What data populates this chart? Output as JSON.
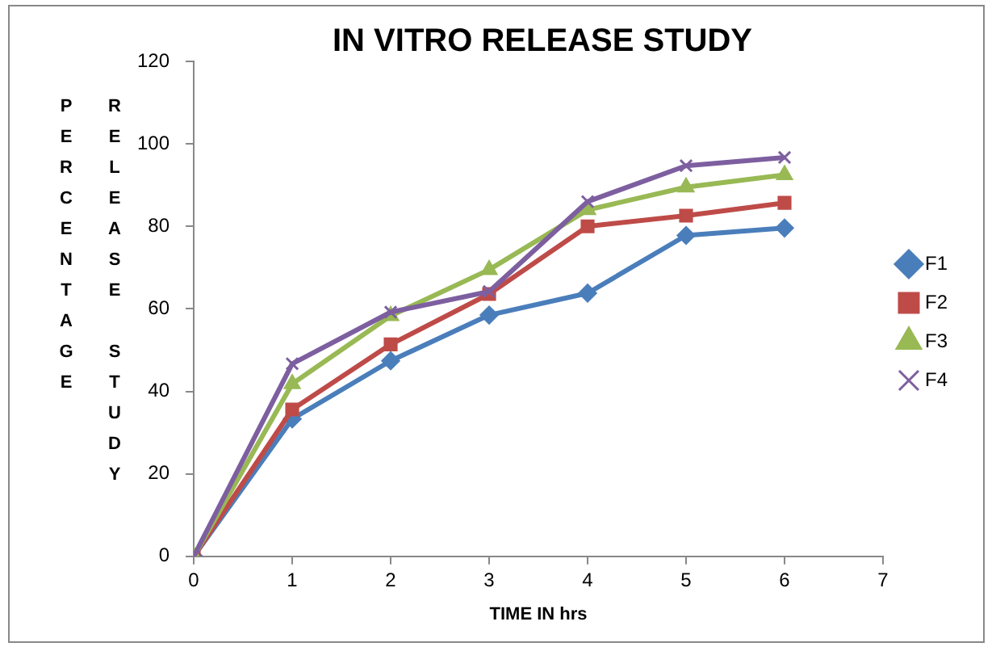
{
  "chart_data": {
    "type": "line",
    "title": "IN VITRO RELEASE STUDY",
    "xlabel": "TIME IN hrs",
    "ylabel": "PERCENTAGE RELEASE STUDY",
    "x": [
      0,
      1,
      2,
      3,
      4,
      5,
      6
    ],
    "xlim": [
      0,
      7
    ],
    "xticks": [
      0,
      1,
      2,
      3,
      4,
      5,
      6,
      7
    ],
    "ylim": [
      0,
      120
    ],
    "yticks": [
      0,
      20,
      40,
      60,
      80,
      100,
      120
    ],
    "grid": false,
    "legend": "right",
    "series": [
      {
        "name": "F1",
        "color": "#4a7ebb",
        "marker": "diamond",
        "values": [
          0,
          33.3,
          47.4,
          58.5,
          63.8,
          77.8,
          79.6
        ]
      },
      {
        "name": "F2",
        "color": "#be4b48",
        "marker": "square",
        "values": [
          0,
          35.6,
          51.4,
          63.6,
          80,
          82.6,
          85.7
        ]
      },
      {
        "name": "F3",
        "color": "#98b954",
        "marker": "triangle",
        "values": [
          0,
          41.8,
          58.3,
          69.5,
          84,
          89.5,
          92.5
        ]
      },
      {
        "name": "F4",
        "color": "#7d5fa0",
        "marker": "cross",
        "values": [
          0,
          46.7,
          59.2,
          64.2,
          86,
          94.7,
          96.7
        ]
      }
    ]
  }
}
